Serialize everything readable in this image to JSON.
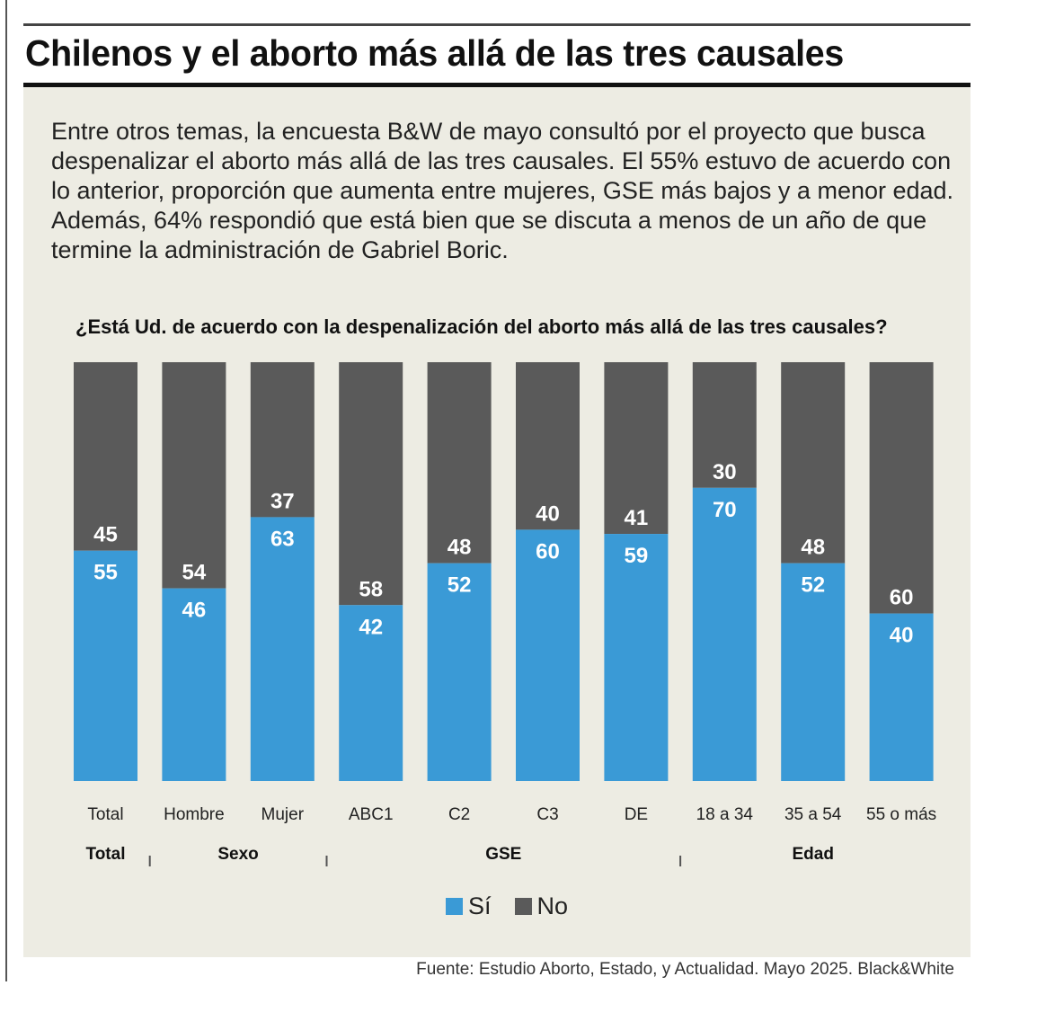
{
  "title": "Chilenos y el aborto más allá de las tres causales",
  "intro": "Entre otros temas, la encuesta B&W de mayo consultó por el proyecto que busca despenalizar el aborto más allá de las tres causales. El 55% estuvo de acuerdo con lo anterior, proporción que aumenta entre mujeres, GSE más bajos y a menor edad. Además, 64% respondió que está bien que se discuta a menos de un año de que termine la administración de Gabriel Boric.",
  "source": "Fuente: Estudio Aborto, Estado, y Actualidad. Mayo 2025. Black&White",
  "colors": {
    "si": "#3a9ad6",
    "no": "#5a5a5a",
    "panel": "#edece3"
  },
  "chart_data": {
    "type": "bar",
    "stacked": true,
    "title": "¿Está Ud. de acuerdo con la despenalización del aborto más allá de las tres causales?",
    "categories": [
      "Total",
      "Hombre",
      "Mujer",
      "ABC1",
      "C2",
      "C3",
      "DE",
      "18 a 34",
      "35 a 54",
      "55 o más"
    ],
    "groups": [
      {
        "label": "Total",
        "categories": [
          "Total"
        ]
      },
      {
        "label": "Sexo",
        "categories": [
          "Hombre",
          "Mujer"
        ]
      },
      {
        "label": "GSE",
        "categories": [
          "ABC1",
          "C2",
          "C3",
          "DE"
        ]
      },
      {
        "label": "Edad",
        "categories": [
          "18 a 34",
          "35 a 54",
          "55 o más"
        ]
      }
    ],
    "series": [
      {
        "name": "Sí",
        "values": [
          55,
          46,
          63,
          42,
          52,
          60,
          59,
          70,
          52,
          40
        ]
      },
      {
        "name": "No",
        "values": [
          45,
          54,
          37,
          58,
          48,
          40,
          41,
          30,
          48,
          60
        ]
      }
    ],
    "ylim": [
      0,
      100
    ],
    "legend": "bottom-center"
  }
}
